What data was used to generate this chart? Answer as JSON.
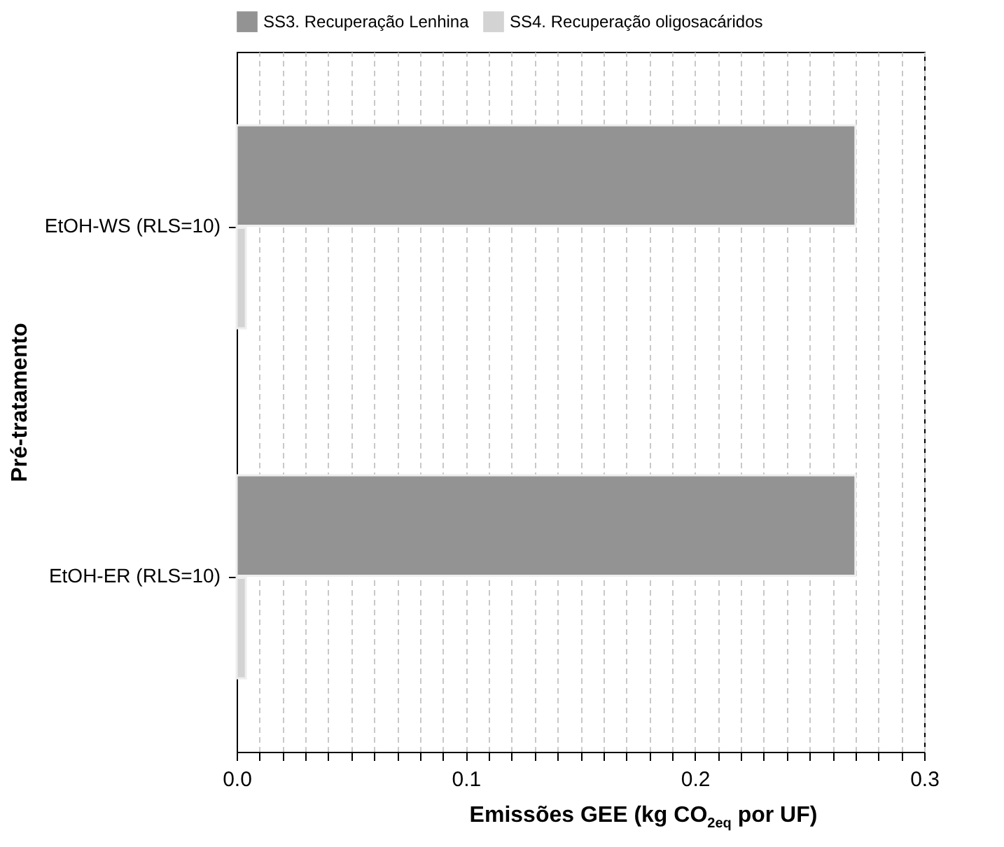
{
  "chart_data": {
    "type": "bar",
    "orientation": "horizontal",
    "categories": [
      "EtOH-WS (RLS=10)",
      "EtOH-ER (RLS=10)"
    ],
    "series": [
      {
        "name": "SS3. Recuperação Lenhina",
        "color": "#939393",
        "values": [
          0.27,
          0.27
        ]
      },
      {
        "name": "SS4. Recuperação oligosacáridos",
        "color": "#d3d3d3",
        "values": [
          0.004,
          0.004
        ]
      }
    ],
    "xlabel": "Emissões GEE (kg CO$_{2eq}$ por UF)",
    "ylabel": "Pré-tratamento",
    "xlim": [
      0,
      0.3
    ],
    "xticks": [
      {
        "value": 0,
        "label": "0.0"
      },
      {
        "value": 0.01,
        "label": null
      },
      {
        "value": 0.02,
        "label": null
      },
      {
        "value": 0.03,
        "label": null
      },
      {
        "value": 0.04,
        "label": null
      },
      {
        "value": 0.05,
        "label": null
      },
      {
        "value": 0.06,
        "label": null
      },
      {
        "value": 0.07,
        "label": null
      },
      {
        "value": 0.08,
        "label": null
      },
      {
        "value": 0.09,
        "label": null
      },
      0.1,
      {
        "value": 0.11,
        "label": null
      },
      {
        "value": 0.12,
        "label": null
      },
      {
        "value": 0.13,
        "label": null
      },
      {
        "value": 0.14,
        "label": null
      },
      {
        "value": 0.15,
        "label": null
      },
      {
        "value": 0.16,
        "label": null
      },
      {
        "value": 0.17,
        "label": null
      },
      {
        "value": 0.18,
        "label": null
      },
      {
        "value": 0.19,
        "label": null
      },
      0.2,
      {
        "value": 0.21,
        "label": null
      },
      {
        "value": 0.22,
        "label": null
      },
      {
        "value": 0.23,
        "label": null
      },
      {
        "value": 0.24,
        "label": null
      },
      {
        "value": 0.25,
        "label": null
      },
      {
        "value": 0.26,
        "label": null
      },
      {
        "value": 0.27,
        "label": null
      },
      {
        "value": 0.28,
        "label": null
      },
      {
        "value": 0.29,
        "label": null
      },
      0.3
    ],
    "grid": "x",
    "legend": "top"
  }
}
